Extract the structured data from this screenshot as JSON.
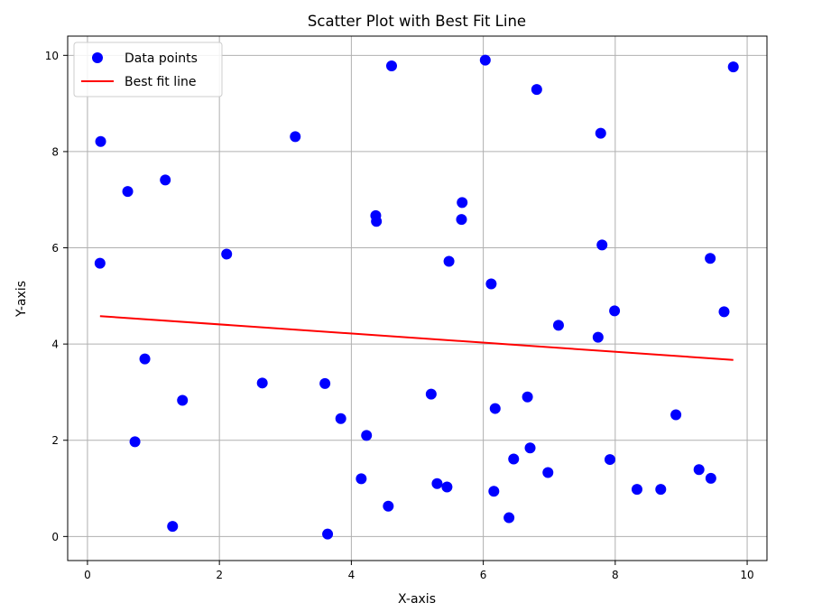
{
  "chart_data": {
    "type": "scatter",
    "title": "Scatter Plot with Best Fit Line",
    "xlabel": "X-axis",
    "ylabel": "Y-axis",
    "xlim": [
      -0.3,
      10.3
    ],
    "ylim": [
      -0.5,
      10.4
    ],
    "xticks": [
      0,
      2,
      4,
      6,
      8,
      10
    ],
    "yticks": [
      0,
      2,
      4,
      6,
      8,
      10
    ],
    "grid": true,
    "legend_position": "top-left",
    "series": [
      {
        "name": "Data points",
        "kind": "scatter",
        "color": "#0000ff",
        "points": [
          [
            0.2,
            8.21
          ],
          [
            0.19,
            5.68
          ],
          [
            0.61,
            7.17
          ],
          [
            0.72,
            1.97
          ],
          [
            0.87,
            3.69
          ],
          [
            1.18,
            7.41
          ],
          [
            1.29,
            0.21
          ],
          [
            1.44,
            2.83
          ],
          [
            2.11,
            5.87
          ],
          [
            2.65,
            3.19
          ],
          [
            3.15,
            8.31
          ],
          [
            3.6,
            3.18
          ],
          [
            3.64,
            0.05
          ],
          [
            3.84,
            2.45
          ],
          [
            4.15,
            1.2
          ],
          [
            4.23,
            2.1
          ],
          [
            4.37,
            6.67
          ],
          [
            4.38,
            6.55
          ],
          [
            4.56,
            0.63
          ],
          [
            4.61,
            9.78
          ],
          [
            5.21,
            2.96
          ],
          [
            5.3,
            1.1
          ],
          [
            5.45,
            1.03
          ],
          [
            5.48,
            5.72
          ],
          [
            5.67,
            6.59
          ],
          [
            5.68,
            6.94
          ],
          [
            6.03,
            9.9
          ],
          [
            6.12,
            5.25
          ],
          [
            6.16,
            0.94
          ],
          [
            6.18,
            2.66
          ],
          [
            6.39,
            0.39
          ],
          [
            6.46,
            1.61
          ],
          [
            6.67,
            2.9
          ],
          [
            6.71,
            1.84
          ],
          [
            6.81,
            9.29
          ],
          [
            6.98,
            1.33
          ],
          [
            7.14,
            4.39
          ],
          [
            7.74,
            4.14
          ],
          [
            7.78,
            8.38
          ],
          [
            7.8,
            6.06
          ],
          [
            7.92,
            1.6
          ],
          [
            7.99,
            4.69
          ],
          [
            8.33,
            0.98
          ],
          [
            8.69,
            0.98
          ],
          [
            8.92,
            2.53
          ],
          [
            9.27,
            1.39
          ],
          [
            9.45,
            1.21
          ],
          [
            9.44,
            5.78
          ],
          [
            9.65,
            4.67
          ],
          [
            9.79,
            9.76
          ]
        ]
      },
      {
        "name": "Best fit line",
        "kind": "line",
        "color": "#ff0000",
        "x": [
          0.19,
          9.79
        ],
        "y": [
          4.58,
          3.67
        ]
      }
    ]
  }
}
